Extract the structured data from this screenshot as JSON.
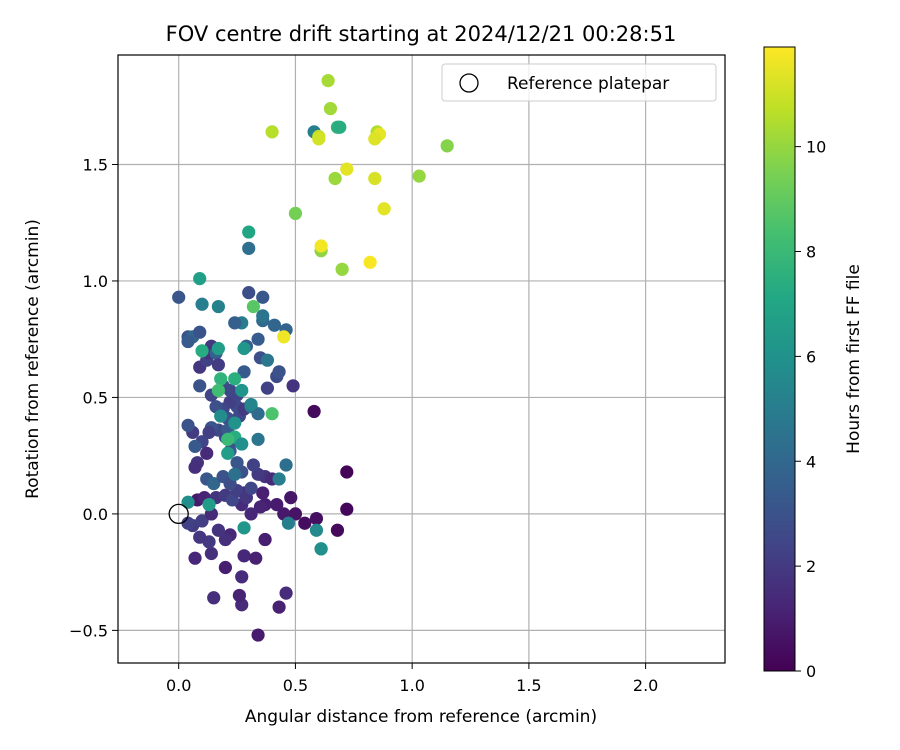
{
  "chart_data": {
    "type": "scatter",
    "title": "FOV centre drift starting at 2024/12/21 00:28:51",
    "xlabel": "Angular distance from reference (arcmin)",
    "ylabel": "Rotation from reference (arcmin)",
    "xlim": [
      -0.26,
      2.34
    ],
    "ylim": [
      -0.64,
      1.97
    ],
    "xticks": [
      0.0,
      0.5,
      1.0,
      1.5,
      2.0
    ],
    "xtick_labels": [
      "0.0",
      "0.5",
      "1.0",
      "1.5",
      "2.0"
    ],
    "yticks": [
      -0.5,
      0.0,
      0.5,
      1.0,
      1.5
    ],
    "ytick_labels": [
      "−0.5",
      "0.0",
      "0.5",
      "1.0",
      "1.5"
    ],
    "grid": true,
    "legend": {
      "position": "top-right",
      "entries": [
        "Reference platepar"
      ]
    },
    "reference_point": {
      "x": 0.0,
      "y": 0.0,
      "label": "Reference platepar"
    },
    "colorbar": {
      "label": "Hours from first FF file",
      "range": [
        0,
        11.9
      ],
      "ticks": [
        0,
        2,
        4,
        6,
        8,
        10
      ],
      "tick_labels": [
        "0",
        "2",
        "4",
        "6",
        "8",
        "10"
      ],
      "colormap": "viridis"
    },
    "points": [
      {
        "x": 0.72,
        "y": 0.18,
        "t": 0.1
      },
      {
        "x": 0.72,
        "y": 0.02,
        "t": 0.2
      },
      {
        "x": 0.68,
        "y": -0.07,
        "t": 0.3
      },
      {
        "x": 0.58,
        "y": 0.44,
        "t": 0.3
      },
      {
        "x": 0.54,
        "y": -0.04,
        "t": 0.4
      },
      {
        "x": 0.59,
        "y": -0.02,
        "t": 0.5
      },
      {
        "x": 0.5,
        "y": 0.0,
        "t": 0.6
      },
      {
        "x": 0.48,
        "y": 0.07,
        "t": 0.7
      },
      {
        "x": 0.45,
        "y": 0.0,
        "t": 0.8
      },
      {
        "x": 0.42,
        "y": 0.04,
        "t": 0.9
      },
      {
        "x": 0.37,
        "y": 0.04,
        "t": 1.0
      },
      {
        "x": 0.36,
        "y": 0.09,
        "t": 1.1
      },
      {
        "x": 0.35,
        "y": 0.03,
        "t": 1.2
      },
      {
        "x": 0.31,
        "y": 0.0,
        "t": 1.3
      },
      {
        "x": 0.28,
        "y": 0.09,
        "t": 1.4
      },
      {
        "x": 0.27,
        "y": 0.04,
        "t": 1.5
      },
      {
        "x": 0.34,
        "y": -0.52,
        "t": 0.9
      },
      {
        "x": 0.43,
        "y": -0.4,
        "t": 1.1
      },
      {
        "x": 0.46,
        "y": -0.34,
        "t": 1.5
      },
      {
        "x": 0.27,
        "y": -0.39,
        "t": 1.4
      },
      {
        "x": 0.26,
        "y": -0.35,
        "t": 1.2
      },
      {
        "x": 0.27,
        "y": -0.27,
        "t": 1.5
      },
      {
        "x": 0.15,
        "y": -0.36,
        "t": 1.6
      },
      {
        "x": 0.2,
        "y": -0.23,
        "t": 1.0
      },
      {
        "x": 0.07,
        "y": -0.19,
        "t": 1.3
      },
      {
        "x": 0.14,
        "y": -0.17,
        "t": 1.6
      },
      {
        "x": 0.28,
        "y": -0.18,
        "t": 1.3
      },
      {
        "x": 0.33,
        "y": -0.19,
        "t": 1.1
      },
      {
        "x": 0.37,
        "y": -0.11,
        "t": 1.0
      },
      {
        "x": 0.22,
        "y": -0.09,
        "t": 1.3
      },
      {
        "x": 0.2,
        "y": -0.11,
        "t": 1.6
      },
      {
        "x": 0.17,
        "y": -0.07,
        "t": 1.8
      },
      {
        "x": 0.13,
        "y": -0.12,
        "t": 2.0
      },
      {
        "x": 0.09,
        "y": -0.1,
        "t": 1.9
      },
      {
        "x": 0.06,
        "y": -0.05,
        "t": 2.1
      },
      {
        "x": 0.04,
        "y": -0.04,
        "t": 2.3
      },
      {
        "x": 0.1,
        "y": -0.03,
        "t": 2.2
      },
      {
        "x": 0.14,
        "y": 0.0,
        "t": 1.4
      },
      {
        "x": 0.08,
        "y": 0.06,
        "t": 0.8
      },
      {
        "x": 0.11,
        "y": 0.07,
        "t": 1.2
      },
      {
        "x": 0.16,
        "y": 0.07,
        "t": 1.8
      },
      {
        "x": 0.2,
        "y": 0.08,
        "t": 2.0
      },
      {
        "x": 0.23,
        "y": 0.06,
        "t": 2.5
      },
      {
        "x": 0.25,
        "y": 0.1,
        "t": 2.2
      },
      {
        "x": 0.29,
        "y": 0.07,
        "t": 1.9
      },
      {
        "x": 0.31,
        "y": 0.11,
        "t": 2.5
      },
      {
        "x": 0.37,
        "y": 0.16,
        "t": 1.8
      },
      {
        "x": 0.4,
        "y": 0.15,
        "t": 1.4
      },
      {
        "x": 0.34,
        "y": 0.17,
        "t": 2.0
      },
      {
        "x": 0.32,
        "y": 0.21,
        "t": 2.3
      },
      {
        "x": 0.27,
        "y": 0.18,
        "t": 2.9
      },
      {
        "x": 0.25,
        "y": 0.22,
        "t": 3.2
      },
      {
        "x": 0.22,
        "y": 0.27,
        "t": 3.5
      },
      {
        "x": 0.23,
        "y": 0.31,
        "t": 3.0
      },
      {
        "x": 0.2,
        "y": 0.33,
        "t": 2.8
      },
      {
        "x": 0.17,
        "y": 0.36,
        "t": 2.6
      },
      {
        "x": 0.14,
        "y": 0.37,
        "t": 3.1
      },
      {
        "x": 0.13,
        "y": 0.35,
        "t": 2.2
      },
      {
        "x": 0.1,
        "y": 0.31,
        "t": 2.4
      },
      {
        "x": 0.07,
        "y": 0.29,
        "t": 3.3
      },
      {
        "x": 0.06,
        "y": 0.35,
        "t": 2.1
      },
      {
        "x": 0.04,
        "y": 0.38,
        "t": 3.0
      },
      {
        "x": 0.08,
        "y": 0.22,
        "t": 1.8
      },
      {
        "x": 0.07,
        "y": 0.2,
        "t": 1.6
      },
      {
        "x": 0.12,
        "y": 0.26,
        "t": 1.4
      },
      {
        "x": 0.12,
        "y": 0.15,
        "t": 3.2
      },
      {
        "x": 0.15,
        "y": 0.13,
        "t": 3.9
      },
      {
        "x": 0.19,
        "y": 0.16,
        "t": 3.0
      },
      {
        "x": 0.22,
        "y": 0.13,
        "t": 2.8
      },
      {
        "x": 0.24,
        "y": 0.17,
        "t": 4.4
      },
      {
        "x": 0.21,
        "y": 0.36,
        "t": 3.3
      },
      {
        "x": 0.21,
        "y": 0.41,
        "t": 2.9
      },
      {
        "x": 0.26,
        "y": 0.42,
        "t": 2.5
      },
      {
        "x": 0.25,
        "y": 0.46,
        "t": 2.7
      },
      {
        "x": 0.22,
        "y": 0.48,
        "t": 2.2
      },
      {
        "x": 0.19,
        "y": 0.45,
        "t": 2.5
      },
      {
        "x": 0.16,
        "y": 0.46,
        "t": 2.9
      },
      {
        "x": 0.14,
        "y": 0.51,
        "t": 2.4
      },
      {
        "x": 0.09,
        "y": 0.55,
        "t": 3.1
      },
      {
        "x": 0.09,
        "y": 0.63,
        "t": 1.9
      },
      {
        "x": 0.12,
        "y": 0.66,
        "t": 2.3
      },
      {
        "x": 0.14,
        "y": 0.72,
        "t": 2.0
      },
      {
        "x": 0.13,
        "y": 0.69,
        "t": 1.7
      },
      {
        "x": 0.16,
        "y": 0.69,
        "t": 3.6
      },
      {
        "x": 0.17,
        "y": 0.64,
        "t": 2.1
      },
      {
        "x": 0.19,
        "y": 0.55,
        "t": 2.8
      },
      {
        "x": 0.22,
        "y": 0.53,
        "t": 2.6
      },
      {
        "x": 0.25,
        "y": 0.51,
        "t": 2.4
      },
      {
        "x": 0.28,
        "y": 0.45,
        "t": 2.0
      },
      {
        "x": 0.28,
        "y": 0.61,
        "t": 3.4
      },
      {
        "x": 0.31,
        "y": 0.46,
        "t": 4.7
      },
      {
        "x": 0.34,
        "y": 0.43,
        "t": 4.1
      },
      {
        "x": 0.38,
        "y": 0.54,
        "t": 2.3
      },
      {
        "x": 0.42,
        "y": 0.59,
        "t": 2.7
      },
      {
        "x": 0.43,
        "y": 0.61,
        "t": 3.0
      },
      {
        "x": 0.49,
        "y": 0.55,
        "t": 1.8
      },
      {
        "x": 0.35,
        "y": 0.67,
        "t": 2.9
      },
      {
        "x": 0.38,
        "y": 0.66,
        "t": 4.7
      },
      {
        "x": 0.34,
        "y": 0.75,
        "t": 3.5
      },
      {
        "x": 0.36,
        "y": 0.83,
        "t": 4.1
      },
      {
        "x": 0.36,
        "y": 0.85,
        "t": 4.6
      },
      {
        "x": 0.41,
        "y": 0.81,
        "t": 3.9
      },
      {
        "x": 0.46,
        "y": 0.79,
        "t": 3.8
      },
      {
        "x": 0.29,
        "y": 0.72,
        "t": 3.5
      },
      {
        "x": 0.28,
        "y": 0.71,
        "t": 6.2
      },
      {
        "x": 0.27,
        "y": 0.82,
        "t": 4.9
      },
      {
        "x": 0.24,
        "y": 0.82,
        "t": 3.6
      },
      {
        "x": 0.3,
        "y": 0.95,
        "t": 2.8
      },
      {
        "x": 0.36,
        "y": 0.93,
        "t": 3.2
      },
      {
        "x": 0.32,
        "y": 0.89,
        "t": 8.8
      },
      {
        "x": 0.04,
        "y": 0.76,
        "t": 3.0
      },
      {
        "x": 0.06,
        "y": 0.76,
        "t": 3.9
      },
      {
        "x": 0.04,
        "y": 0.74,
        "t": 3.4
      },
      {
        "x": 0.09,
        "y": 0.78,
        "t": 3.1
      },
      {
        "x": 0.1,
        "y": 0.9,
        "t": 5.0
      },
      {
        "x": 0.17,
        "y": 0.89,
        "t": 5.2
      },
      {
        "x": 0.0,
        "y": 0.93,
        "t": 3.2
      },
      {
        "x": 0.09,
        "y": 1.01,
        "t": 6.7
      },
      {
        "x": 0.3,
        "y": 1.14,
        "t": 4.3
      },
      {
        "x": 0.3,
        "y": 1.21,
        "t": 7.0
      },
      {
        "x": 0.1,
        "y": 0.7,
        "t": 7.3
      },
      {
        "x": 0.17,
        "y": 0.71,
        "t": 6.6
      },
      {
        "x": 0.18,
        "y": 0.58,
        "t": 7.7
      },
      {
        "x": 0.24,
        "y": 0.58,
        "t": 7.5
      },
      {
        "x": 0.27,
        "y": 0.53,
        "t": 6.1
      },
      {
        "x": 0.17,
        "y": 0.53,
        "t": 8.2
      },
      {
        "x": 0.24,
        "y": 0.39,
        "t": 6.0
      },
      {
        "x": 0.18,
        "y": 0.42,
        "t": 5.7
      },
      {
        "x": 0.31,
        "y": 0.47,
        "t": 5.4
      },
      {
        "x": 0.24,
        "y": 0.33,
        "t": 7.4
      },
      {
        "x": 0.21,
        "y": 0.32,
        "t": 8.0
      },
      {
        "x": 0.21,
        "y": 0.26,
        "t": 6.6
      },
      {
        "x": 0.27,
        "y": 0.3,
        "t": 5.9
      },
      {
        "x": 0.34,
        "y": 0.32,
        "t": 4.6
      },
      {
        "x": 0.4,
        "y": 0.43,
        "t": 8.5
      },
      {
        "x": 0.46,
        "y": 0.21,
        "t": 4.4
      },
      {
        "x": 0.43,
        "y": 0.15,
        "t": 5.0
      },
      {
        "x": 0.04,
        "y": 0.05,
        "t": 5.8
      },
      {
        "x": 0.13,
        "y": 0.04,
        "t": 6.5
      },
      {
        "x": 0.28,
        "y": -0.06,
        "t": 6.2
      },
      {
        "x": 0.47,
        "y": -0.04,
        "t": 5.1
      },
      {
        "x": 0.59,
        "y": -0.07,
        "t": 5.6
      },
      {
        "x": 0.61,
        "y": -0.15,
        "t": 6.6
      },
      {
        "x": 0.61,
        "y": -0.15,
        "t": 5.9
      },
      {
        "x": 0.58,
        "y": 1.64,
        "t": 5.1
      },
      {
        "x": 0.68,
        "y": 1.66,
        "t": 7.6
      },
      {
        "x": 0.69,
        "y": 1.66,
        "t": 7.4
      },
      {
        "x": 0.5,
        "y": 1.29,
        "t": 9.4
      },
      {
        "x": 0.61,
        "y": 1.13,
        "t": 9.9
      },
      {
        "x": 0.7,
        "y": 1.05,
        "t": 10.0
      },
      {
        "x": 0.67,
        "y": 1.44,
        "t": 10.1
      },
      {
        "x": 0.64,
        "y": 1.86,
        "t": 10.3
      },
      {
        "x": 0.65,
        "y": 1.74,
        "t": 10.2
      },
      {
        "x": 0.4,
        "y": 1.64,
        "t": 10.6
      },
      {
        "x": 0.6,
        "y": 1.62,
        "t": 10.9
      },
      {
        "x": 0.6,
        "y": 1.61,
        "t": 11.1
      },
      {
        "x": 0.61,
        "y": 1.15,
        "t": 11.7
      },
      {
        "x": 0.72,
        "y": 1.48,
        "t": 11.4
      },
      {
        "x": 0.84,
        "y": 1.44,
        "t": 11.2
      },
      {
        "x": 0.85,
        "y": 1.64,
        "t": 10.5
      },
      {
        "x": 0.86,
        "y": 1.63,
        "t": 11.5
      },
      {
        "x": 0.84,
        "y": 1.61,
        "t": 11.3
      },
      {
        "x": 0.82,
        "y": 1.08,
        "t": 11.8
      },
      {
        "x": 0.88,
        "y": 1.31,
        "t": 11.4
      },
      {
        "x": 1.03,
        "y": 1.45,
        "t": 10.0
      },
      {
        "x": 1.15,
        "y": 1.58,
        "t": 9.7
      },
      {
        "x": 0.45,
        "y": 0.76,
        "t": 11.6
      }
    ]
  }
}
